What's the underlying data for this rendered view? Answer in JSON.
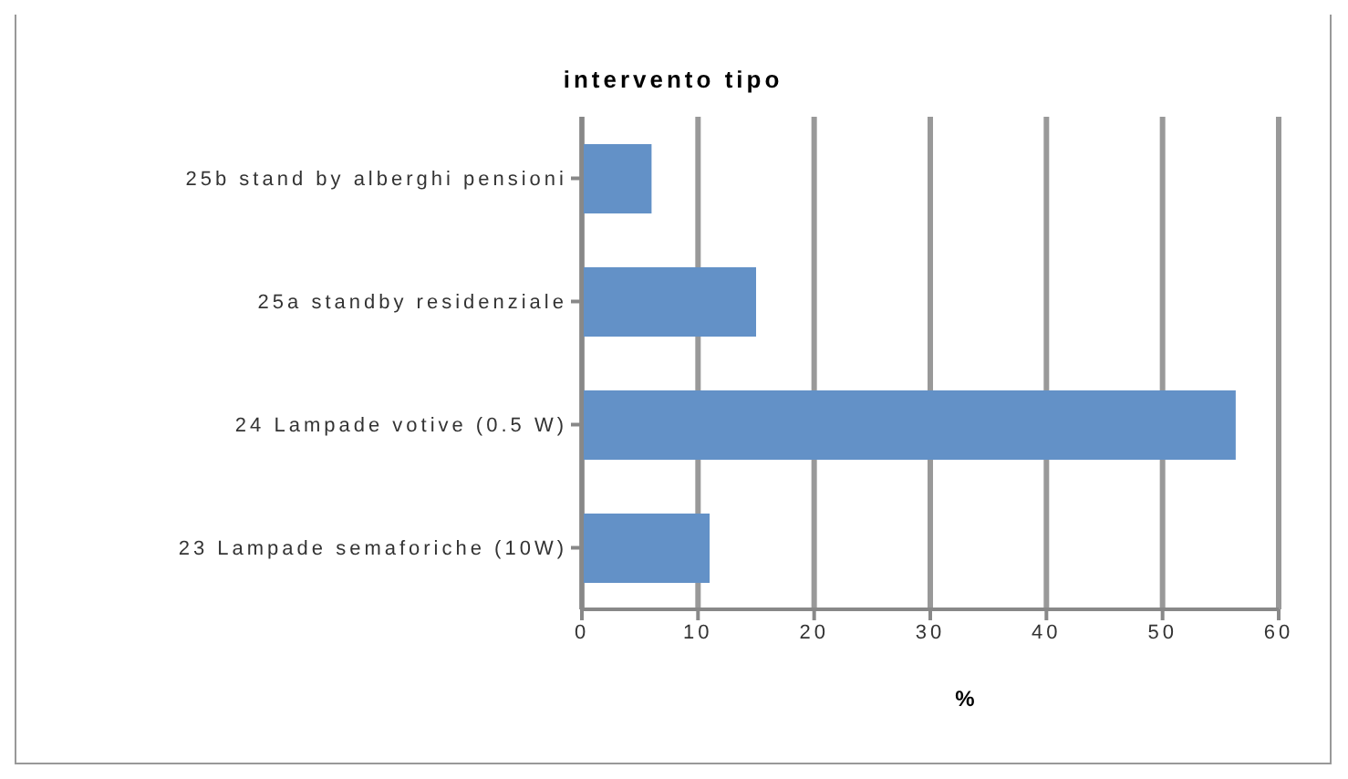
{
  "chart_data": {
    "type": "bar",
    "orientation": "horizontal",
    "title": "intervento tipo",
    "xlabel": "%",
    "categories": [
      "25b stand by alberghi pensioni",
      "25a standby residenziale",
      "24 Lampade votive (0.5 W)",
      "23 Lampade semaforiche (10W)"
    ],
    "values": [
      6,
      15,
      56.3,
      11
    ],
    "color": "#6391c7",
    "xlim": [
      0,
      60
    ],
    "xticks": [
      0,
      10,
      20,
      30,
      40,
      50,
      60
    ],
    "grid": "x",
    "legend": false
  }
}
